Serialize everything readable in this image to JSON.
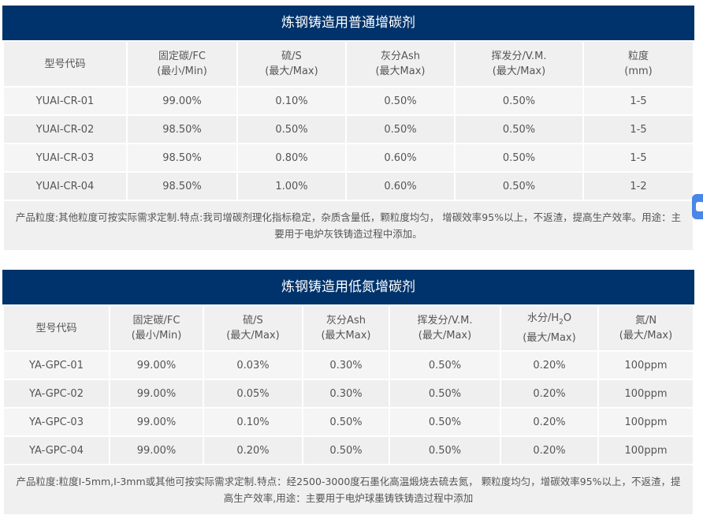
{
  "tables": [
    {
      "title": "炼钢铸造用普通增碳剂",
      "headers": [
        {
          "line1": "型号代码",
          "line2": ""
        },
        {
          "line1": "固定碳/FC",
          "line2": "(最小/Min)"
        },
        {
          "line1": "硫/S",
          "line2": "(最大/Max)"
        },
        {
          "line1": "灰分Ash",
          "line2": "(最大Max)"
        },
        {
          "line1": "挥发分/V.M.",
          "line2": "(最大/Max)"
        },
        {
          "line1": "粒度",
          "line2": "(mm)"
        }
      ],
      "rows": [
        [
          "YUAI-CR-01",
          "99.00%",
          "0.10%",
          "0.50%",
          "0.50%",
          "1-5"
        ],
        [
          "YUAI-CR-02",
          "98.50%",
          "0.50%",
          "0.50%",
          "0.50%",
          "1-5"
        ],
        [
          "YUAI-CR-03",
          "98.50%",
          "0.80%",
          "0.60%",
          "0.50%",
          "1-5"
        ],
        [
          "YUAI-CR-04",
          "98.50%",
          "1.00%",
          "0.60%",
          "0.50%",
          "1-2"
        ]
      ],
      "note": "产品粒度:其他粒度可按实际需求定制.特点:我司增碳剂理化指标稳定，杂质含量低，颗粒度均匀， 增碳效率95%以上，不返渣，提高生产效率。用途：主要用于电炉灰铁铸造过程中添加。"
    },
    {
      "title": "炼钢铸造用低氮增碳剂",
      "headers": [
        {
          "line1": "型号代码",
          "line2": ""
        },
        {
          "line1": "固定碳/FC",
          "line2": "(最小/Min)"
        },
        {
          "line1": "硫/S",
          "line2": "(最大/Max)"
        },
        {
          "line1": "灰分Ash",
          "line2": "(最大Max)"
        },
        {
          "line1": "挥发分/V.M.",
          "line2": "(最大/Max)"
        },
        {
          "line1": "水分/H",
          "sub": "2",
          "line1_tail": "O",
          "line2": "(最大/Max)"
        },
        {
          "line1": "氮/N",
          "line2": "(最大/Max)"
        }
      ],
      "rows": [
        [
          "YA-GPC-01",
          "99.00%",
          "0.03%",
          "0.30%",
          "0.50%",
          "0.20%",
          "100ppm"
        ],
        [
          "YA-GPC-02",
          "99.00%",
          "0.05%",
          "0.30%",
          "0.50%",
          "0.20%",
          "100ppm"
        ],
        [
          "YA-GPC-03",
          "99.00%",
          "0.10%",
          "0.50%",
          "0.50%",
          "0.20%",
          "100ppm"
        ],
        [
          "YA-GPC-04",
          "99.00%",
          "0.20%",
          "0.50%",
          "0.50%",
          "0.20%",
          "100ppm"
        ]
      ],
      "note": "产品粒度:粒度I-5mm,I-3mm或其他可按实际需求定制.特点：经2500-3000度石墨化高温煅烧去硫去氮， 颗粒度均匀，增碳效率95%以上，不返渣，提高生产效率,用途：主要用于电炉球墨铸铁铸造过程中添加"
    }
  ]
}
